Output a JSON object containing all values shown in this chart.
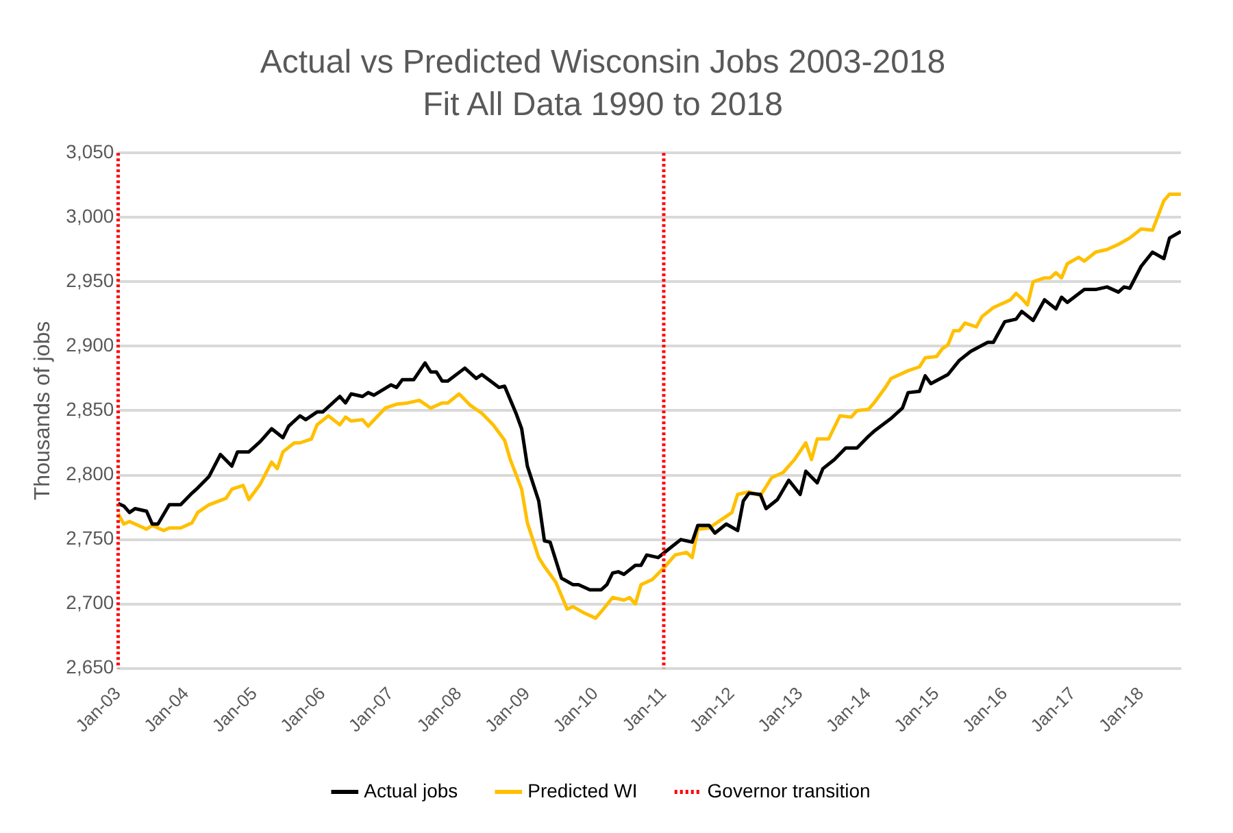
{
  "chart_data": {
    "type": "line",
    "title": "Actual vs Predicted Wisconsin Jobs 2003-2018",
    "subtitle": "Fit All Data 1990 to 2018",
    "ylabel": "Thousands of jobs",
    "xlim": [
      "2003-01",
      "2018-08"
    ],
    "xticks": [
      {
        "value": "2003-01",
        "label": "Jan-03"
      },
      {
        "value": "2004-01",
        "label": "Jan-04"
      },
      {
        "value": "2005-01",
        "label": "Jan-05"
      },
      {
        "value": "2006-01",
        "label": "Jan-06"
      },
      {
        "value": "2007-01",
        "label": "Jan-07"
      },
      {
        "value": "2008-01",
        "label": "Jan-08"
      },
      {
        "value": "2009-01",
        "label": "Jan-09"
      },
      {
        "value": "2010-01",
        "label": "Jan-10"
      },
      {
        "value": "2011-01",
        "label": "Jan-11"
      },
      {
        "value": "2012-01",
        "label": "Jan-12"
      },
      {
        "value": "2013-01",
        "label": "Jan-13"
      },
      {
        "value": "2014-01",
        "label": "Jan-14"
      },
      {
        "value": "2015-01",
        "label": "Jan-15"
      },
      {
        "value": "2016-01",
        "label": "Jan-16"
      },
      {
        "value": "2017-01",
        "label": "Jan-17"
      },
      {
        "value": "2018-01",
        "label": "Jan-18"
      }
    ],
    "ylim": [
      2650,
      3050
    ],
    "yticks": [
      {
        "value": 2650,
        "label": "2,650"
      },
      {
        "value": 2700,
        "label": "2,700"
      },
      {
        "value": 2750,
        "label": "2,750"
      },
      {
        "value": 2800,
        "label": "2,800"
      },
      {
        "value": 2850,
        "label": "2,850"
      },
      {
        "value": 2900,
        "label": "2,900"
      },
      {
        "value": 2950,
        "label": "2,950"
      },
      {
        "value": 3000,
        "label": "3,000"
      },
      {
        "value": 3050,
        "label": "3,050"
      }
    ],
    "grid": "y",
    "legend": "bottom",
    "marker": "none",
    "line_style": "solid",
    "series": [
      {
        "name": "Actual jobs",
        "color": "#000000",
        "x": [
          "2003-01",
          "2003-02",
          "2003-03",
          "2003-04",
          "2003-06",
          "2003-07",
          "2003-08",
          "2003-10",
          "2003-12",
          "2004-02",
          "2004-03",
          "2004-05",
          "2004-07",
          "2004-09",
          "2004-10",
          "2004-12",
          "2005-02",
          "2005-04",
          "2005-06",
          "2005-07",
          "2005-09",
          "2005-10",
          "2005-12",
          "2006-01",
          "2006-04",
          "2006-05",
          "2006-06",
          "2006-08",
          "2006-09",
          "2006-10",
          "2007-01",
          "2007-02",
          "2007-03",
          "2007-05",
          "2007-07",
          "2007-08",
          "2007-09",
          "2007-10",
          "2007-11",
          "2008-02",
          "2008-04",
          "2008-05",
          "2008-08",
          "2008-09",
          "2008-11",
          "2008-12",
          "2009-01",
          "2009-03",
          "2009-04",
          "2009-05",
          "2009-07",
          "2009-09",
          "2009-10",
          "2009-12",
          "2010-02",
          "2010-03",
          "2010-04",
          "2010-05",
          "2010-06",
          "2010-08",
          "2010-09",
          "2010-10",
          "2010-12",
          "2011-02",
          "2011-04",
          "2011-06",
          "2011-07",
          "2011-09",
          "2011-10",
          "2011-12",
          "2012-02",
          "2012-03",
          "2012-04",
          "2012-06",
          "2012-07",
          "2012-09",
          "2012-11",
          "2013-01",
          "2013-02",
          "2013-04",
          "2013-05",
          "2013-07",
          "2013-09",
          "2013-11",
          "2014-01",
          "2014-02",
          "2014-05",
          "2014-07",
          "2014-08",
          "2014-10",
          "2014-11",
          "2014-12",
          "2015-03",
          "2015-05",
          "2015-07",
          "2015-10",
          "2015-11",
          "2016-01",
          "2016-03",
          "2016-04",
          "2016-06",
          "2016-08",
          "2016-10",
          "2016-11",
          "2016-12",
          "2017-03",
          "2017-05",
          "2017-07",
          "2017-09",
          "2017-10",
          "2017-11",
          "2018-01",
          "2018-03",
          "2018-05",
          "2018-06",
          "2018-08"
        ],
        "values": [
          2778,
          2776,
          2771,
          2774,
          2772,
          2762,
          2762,
          2777,
          2777,
          2786,
          2790,
          2799,
          2816,
          2807,
          2818,
          2818,
          2826,
          2836,
          2829,
          2838,
          2846,
          2843,
          2849,
          2849,
          2861,
          2856,
          2863,
          2861,
          2864,
          2862,
          2870,
          2868,
          2874,
          2874,
          2887,
          2880,
          2880,
          2873,
          2873,
          2883,
          2875,
          2878,
          2868,
          2869,
          2848,
          2836,
          2807,
          2780,
          2749,
          2748,
          2720,
          2715,
          2715,
          2711,
          2711,
          2715,
          2724,
          2725,
          2723,
          2730,
          2730,
          2738,
          2736,
          2743,
          2750,
          2748,
          2761,
          2761,
          2755,
          2762,
          2757,
          2780,
          2786,
          2785,
          2774,
          2781,
          2796,
          2785,
          2803,
          2794,
          2805,
          2812,
          2821,
          2821,
          2830,
          2834,
          2844,
          2852,
          2864,
          2865,
          2877,
          2871,
          2878,
          2889,
          2896,
          2903,
          2903,
          2919,
          2921,
          2927,
          2920,
          2936,
          2929,
          2938,
          2934,
          2944,
          2944,
          2946,
          2942,
          2946,
          2945,
          2962,
          2973,
          2968,
          2984,
          2989
        ]
      },
      {
        "name": "Predicted WI",
        "color": "#ffc000",
        "x": [
          "2003-01",
          "2003-02",
          "2003-03",
          "2003-06",
          "2003-07",
          "2003-09",
          "2003-10",
          "2003-12",
          "2004-02",
          "2004-03",
          "2004-05",
          "2004-08",
          "2004-09",
          "2004-11",
          "2004-12",
          "2005-02",
          "2005-04",
          "2005-05",
          "2005-06",
          "2005-08",
          "2005-09",
          "2005-11",
          "2005-12",
          "2006-02",
          "2006-04",
          "2006-05",
          "2006-06",
          "2006-08",
          "2006-09",
          "2006-12",
          "2007-02",
          "2007-04",
          "2007-06",
          "2007-08",
          "2007-10",
          "2007-11",
          "2008-01",
          "2008-03",
          "2008-05",
          "2008-07",
          "2008-09",
          "2008-10",
          "2008-12",
          "2009-01",
          "2009-03",
          "2009-04",
          "2009-06",
          "2009-08",
          "2009-09",
          "2009-11",
          "2010-01",
          "2010-02",
          "2010-04",
          "2010-06",
          "2010-07",
          "2010-08",
          "2010-09",
          "2010-11",
          "2011-01",
          "2011-03",
          "2011-05",
          "2011-06",
          "2011-07",
          "2011-09",
          "2011-11",
          "2012-01",
          "2012-02",
          "2012-04",
          "2012-06",
          "2012-08",
          "2012-10",
          "2012-12",
          "2013-02",
          "2013-03",
          "2013-04",
          "2013-06",
          "2013-08",
          "2013-10",
          "2013-11",
          "2014-01",
          "2014-02",
          "2014-04",
          "2014-05",
          "2014-08",
          "2014-10",
          "2014-11",
          "2015-01",
          "2015-02",
          "2015-03",
          "2015-04",
          "2015-05",
          "2015-06",
          "2015-08",
          "2015-09",
          "2015-11",
          "2016-02",
          "2016-03",
          "2016-04",
          "2016-05",
          "2016-06",
          "2016-08",
          "2016-09",
          "2016-10",
          "2016-11",
          "2016-12",
          "2017-02",
          "2017-03",
          "2017-05",
          "2017-07",
          "2017-09",
          "2017-11",
          "2018-01",
          "2018-03",
          "2018-05",
          "2018-06",
          "2018-08"
        ],
        "values": [
          2770,
          2762,
          2764,
          2758,
          2761,
          2757,
          2759,
          2759,
          2763,
          2771,
          2777,
          2782,
          2789,
          2792,
          2781,
          2793,
          2810,
          2805,
          2818,
          2825,
          2825,
          2828,
          2839,
          2846,
          2839,
          2845,
          2842,
          2843,
          2838,
          2852,
          2855,
          2856,
          2858,
          2852,
          2856,
          2856,
          2863,
          2854,
          2848,
          2839,
          2827,
          2812,
          2789,
          2763,
          2736,
          2729,
          2717,
          2696,
          2698,
          2693,
          2689,
          2694,
          2705,
          2703,
          2705,
          2700,
          2715,
          2719,
          2728,
          2738,
          2740,
          2736,
          2758,
          2759,
          2765,
          2771,
          2785,
          2787,
          2784,
          2798,
          2802,
          2812,
          2825,
          2812,
          2828,
          2828,
          2846,
          2845,
          2850,
          2851,
          2856,
          2868,
          2875,
          2881,
          2884,
          2891,
          2892,
          2898,
          2901,
          2912,
          2912,
          2918,
          2915,
          2923,
          2930,
          2936,
          2941,
          2937,
          2932,
          2950,
          2953,
          2953,
          2957,
          2953,
          2964,
          2969,
          2966,
          2973,
          2975,
          2979,
          2984,
          2991,
          2990,
          3013,
          3018,
          3018
        ]
      }
    ],
    "ref_lines": [
      {
        "axis": "x",
        "value": "2003-01",
        "label": "Governor transition",
        "color": "#ff0000",
        "line_style": "dotted"
      },
      {
        "axis": "x",
        "value": "2011-01",
        "color": "#ff0000",
        "line_style": "dotted"
      }
    ]
  }
}
